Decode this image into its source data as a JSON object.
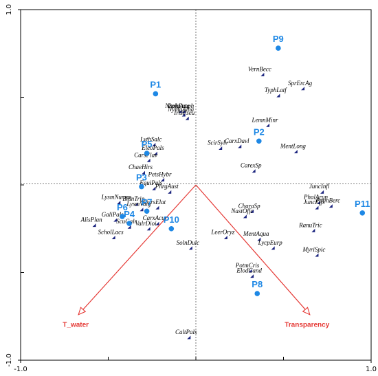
{
  "chart_data": {
    "type": "scatter",
    "xlim": [
      -1.0,
      1.0
    ],
    "ylim": [
      -1.0,
      1.0
    ],
    "x_ticks": [
      "-1.0",
      "1.0"
    ],
    "y_ticks": [
      "1.0",
      "-1.0"
    ],
    "colors": {
      "sample": "#1e88e5",
      "env": "#e53935",
      "species": "#1a237e"
    },
    "species": [
      {
        "name": "VernBecc",
        "x": 0.38,
        "y": 0.63
      },
      {
        "name": "SprErcAg",
        "x": 0.61,
        "y": 0.55
      },
      {
        "name": "TyphLatf",
        "x": 0.47,
        "y": 0.51
      },
      {
        "name": "NuphLute",
        "x": -0.09,
        "y": 0.42
      },
      {
        "name": "PolgAmph",
        "x": -0.07,
        "y": 0.42
      },
      {
        "name": "NympAlba",
        "x": -0.07,
        "y": 0.4
      },
      {
        "name": "IrisPseu",
        "x": -0.05,
        "y": 0.38
      },
      {
        "name": "LemnMinr",
        "x": 0.41,
        "y": 0.34
      },
      {
        "name": "ScirSylv",
        "x": 0.14,
        "y": 0.21
      },
      {
        "name": "CarxDavl",
        "x": 0.25,
        "y": 0.22
      },
      {
        "name": "MentLong",
        "x": 0.57,
        "y": 0.19
      },
      {
        "name": "LythSalc",
        "x": -0.24,
        "y": 0.23
      },
      {
        "name": "EleoPals",
        "x": -0.23,
        "y": 0.18
      },
      {
        "name": "CarsFlav",
        "x": -0.27,
        "y": 0.14
      },
      {
        "name": "CarexSp",
        "x": 0.33,
        "y": 0.08
      },
      {
        "name": "ChaeHirs",
        "x": -0.3,
        "y": 0.07
      },
      {
        "name": "PetsHybr",
        "x": -0.19,
        "y": 0.03
      },
      {
        "name": "EquiPals",
        "x": -0.24,
        "y": -0.02
      },
      {
        "name": "PhrgAust",
        "x": -0.15,
        "y": -0.04
      },
      {
        "name": "JuncInfl",
        "x": 0.72,
        "y": -0.04
      },
      {
        "name": "PhalArun",
        "x": 0.7,
        "y": -0.1
      },
      {
        "name": "PotmBerc",
        "x": 0.77,
        "y": -0.12
      },
      {
        "name": "JuncEffs",
        "x": 0.69,
        "y": -0.13
      },
      {
        "name": "LysmNumm",
        "x": -0.44,
        "y": -0.1
      },
      {
        "name": "BidnTrip",
        "x": -0.34,
        "y": -0.11
      },
      {
        "name": "LysmVulg",
        "x": -0.31,
        "y": -0.14
      },
      {
        "name": "CarsElat",
        "x": -0.22,
        "y": -0.13
      },
      {
        "name": "CharaSp",
        "x": 0.32,
        "y": -0.15
      },
      {
        "name": "NastOffc",
        "x": 0.28,
        "y": -0.18
      },
      {
        "name": "GaliPals",
        "x": -0.46,
        "y": -0.2
      },
      {
        "name": "AlisPlan",
        "x": -0.58,
        "y": -0.23
      },
      {
        "name": "ScuGalr",
        "x": -0.38,
        "y": -0.24
      },
      {
        "name": "CarxAcut",
        "x": -0.22,
        "y": -0.22
      },
      {
        "name": "ValrDioi",
        "x": -0.27,
        "y": -0.25
      },
      {
        "name": "RanuTric",
        "x": 0.67,
        "y": -0.26
      },
      {
        "name": "ScholLacs",
        "x": -0.47,
        "y": -0.3
      },
      {
        "name": "LeerOryz",
        "x": 0.17,
        "y": -0.3
      },
      {
        "name": "MentAqua",
        "x": 0.36,
        "y": -0.31
      },
      {
        "name": "LycpEurp",
        "x": 0.44,
        "y": -0.36
      },
      {
        "name": "SolnDulc",
        "x": -0.03,
        "y": -0.36
      },
      {
        "name": "MyriSpic",
        "x": 0.69,
        "y": -0.4
      },
      {
        "name": "PotmCris",
        "x": 0.31,
        "y": -0.49
      },
      {
        "name": "ElodCand",
        "x": 0.32,
        "y": -0.52
      },
      {
        "name": "CaltPals",
        "x": -0.04,
        "y": -0.87
      }
    ],
    "samples": [
      {
        "name": "P9",
        "x": 0.47,
        "y": 0.78
      },
      {
        "name": "P1",
        "x": -0.23,
        "y": 0.52
      },
      {
        "name": "P2",
        "x": 0.36,
        "y": 0.25
      },
      {
        "name": "P5",
        "x": -0.28,
        "y": 0.18
      },
      {
        "name": "P3",
        "x": -0.31,
        "y": -0.01
      },
      {
        "name": "P7",
        "x": -0.28,
        "y": -0.15
      },
      {
        "name": "P6",
        "x": -0.42,
        "y": -0.18
      },
      {
        "name": "P4",
        "x": -0.38,
        "y": -0.22
      },
      {
        "name": "P10",
        "x": -0.14,
        "y": -0.25
      },
      {
        "name": "P11",
        "x": 0.95,
        "y": -0.16
      },
      {
        "name": "P8",
        "x": 0.35,
        "y": -0.62
      }
    ],
    "env_vectors": [
      {
        "name": "T_water",
        "x": -0.67,
        "y": -0.74
      },
      {
        "name": "Transparency",
        "x": 0.65,
        "y": -0.74
      }
    ]
  }
}
